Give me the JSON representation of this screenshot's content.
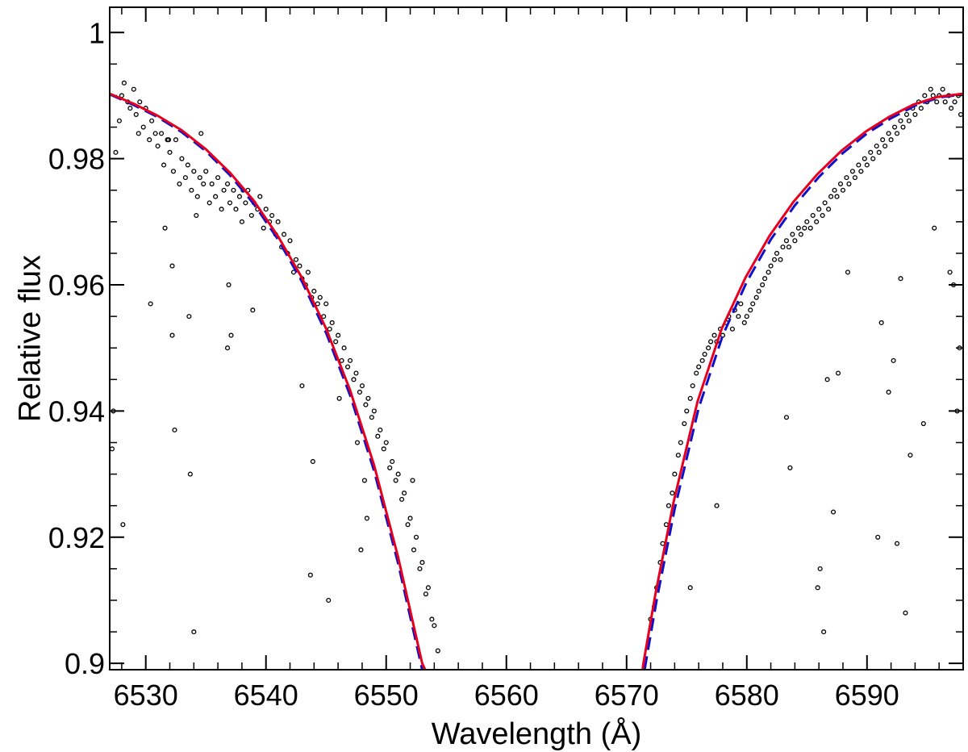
{
  "chart_data": {
    "type": "scatter",
    "title": "",
    "xlabel": "Wavelength (Å)",
    "ylabel": "Relative flux",
    "xlim": [
      6527,
      6598
    ],
    "ylim": [
      0.899,
      1.004
    ],
    "x_ticks": [
      6530,
      6540,
      6550,
      6560,
      6570,
      6580,
      6590
    ],
    "x_tick_labels": [
      "6530",
      "6540",
      "6550",
      "6560",
      "6570",
      "6580",
      "6590"
    ],
    "x_minor_step": 2,
    "y_ticks": [
      0.9,
      0.92,
      0.94,
      0.96,
      0.98,
      1.0
    ],
    "y_tick_labels": [
      "0.9",
      "0.92",
      "0.94",
      "0.96",
      "0.98",
      "1"
    ],
    "y_minor_step": 0.005,
    "grid": false,
    "legend": "none",
    "series": [
      {
        "kind": "scatter",
        "marker": "open-circle",
        "color": "#000000",
        "x": [
          6527.2,
          6527.5,
          6527.8,
          6528.0,
          6528.2,
          6528.5,
          6528.7,
          6529.0,
          6529.2,
          6529.5,
          6529.8,
          6530.0,
          6530.3,
          6530.5,
          6530.8,
          6531.0,
          6531.3,
          6531.5,
          6531.8,
          6532.0,
          6532.3,
          6532.5,
          6532.8,
          6533.0,
          6533.3,
          6533.5,
          6533.8,
          6534.0,
          6534.3,
          6534.5,
          6534.8,
          6535.0,
          6535.3,
          6535.5,
          6535.8,
          6536.0,
          6536.3,
          6536.5,
          6536.8,
          6537.0,
          6537.3,
          6537.5,
          6537.8,
          6538.0,
          6538.3,
          6538.5,
          6538.8,
          6539.0,
          6539.3,
          6539.5,
          6539.8,
          6540.0,
          6540.3,
          6540.5,
          6540.8,
          6541.0,
          6541.3,
          6541.5,
          6541.8,
          6542.0,
          6542.3,
          6542.5,
          6542.8,
          6543.0,
          6543.3,
          6543.5,
          6543.8,
          6544.0,
          6544.3,
          6544.5,
          6544.8,
          6545.0,
          6545.3,
          6545.5,
          6545.8,
          6546.0,
          6546.3,
          6546.5,
          6546.8,
          6547.0,
          6547.3,
          6547.5,
          6547.8,
          6548.0,
          6548.3,
          6548.5,
          6548.8,
          6549.0,
          6549.3,
          6549.5,
          6549.8,
          6550.0,
          6550.3,
          6550.5,
          6550.8,
          6551.0,
          6551.3,
          6551.5,
          6551.8,
          6552.0,
          6552.3,
          6552.5,
          6552.8,
          6553.0,
          6553.3,
          6553.5,
          6553.8,
          6554.0,
          6554.3,
          6527.3,
          6528.1,
          6530.4,
          6531.6,
          6532.2,
          6532.4,
          6533.6,
          6534.2,
          6536.9,
          6537.1,
          6538.9,
          6543.0,
          6543.9,
          6546.1,
          6547.6,
          6548.2,
          6552.2,
          6532.2,
          6533.7,
          6534.0,
          6536.8,
          6543.7,
          6547.9,
          6548.4,
          6545.2,
          6529.4,
          6531.9,
          6534.6,
          6538.1,
          6572.0,
          6572.3,
          6572.5,
          6572.8,
          6573.0,
          6573.3,
          6573.5,
          6573.8,
          6574.0,
          6574.3,
          6574.5,
          6574.8,
          6575.0,
          6575.3,
          6575.5,
          6575.8,
          6576.0,
          6576.3,
          6576.5,
          6576.8,
          6577.0,
          6577.3,
          6577.5,
          6577.8,
          6578.0,
          6578.3,
          6578.5,
          6578.8,
          6579.0,
          6579.3,
          6579.5,
          6579.8,
          6580.0,
          6580.3,
          6580.5,
          6580.8,
          6581.0,
          6581.3,
          6581.5,
          6581.8,
          6582.0,
          6582.3,
          6582.5,
          6582.8,
          6583.0,
          6583.3,
          6583.5,
          6583.8,
          6584.0,
          6584.3,
          6584.5,
          6584.8,
          6585.0,
          6585.3,
          6585.5,
          6585.8,
          6586.0,
          6586.3,
          6586.5,
          6586.8,
          6587.0,
          6587.3,
          6587.5,
          6587.8,
          6588.0,
          6588.3,
          6588.5,
          6588.8,
          6589.0,
          6589.3,
          6589.5,
          6589.8,
          6590.0,
          6590.3,
          6590.5,
          6590.8,
          6591.0,
          6591.3,
          6591.5,
          6591.8,
          6592.0,
          6592.3,
          6592.5,
          6592.8,
          6593.0,
          6593.3,
          6593.5,
          6593.8,
          6594.0,
          6594.3,
          6594.5,
          6594.8,
          6595.0,
          6595.3,
          6595.5,
          6595.8,
          6596.0,
          6596.3,
          6596.5,
          6596.8,
          6597.0,
          6597.3,
          6597.6,
          6597.8,
          6575.3,
          6577.5,
          6583.3,
          6583.6,
          6585.9,
          6586.4,
          6586.7,
          6587.2,
          6587.6,
          6588.4,
          6591.2,
          6591.8,
          6592.2,
          6592.5,
          6592.8,
          6593.6,
          6593.2,
          6597.5,
          6597.7,
          6596.9,
          6597.2,
          6586.1,
          6590.9,
          6594.7,
          6595.6
        ],
        "y": [
          0.934,
          0.981,
          0.986,
          0.99,
          0.992,
          0.989,
          0.988,
          0.991,
          0.987,
          0.989,
          0.985,
          0.988,
          0.983,
          0.986,
          0.984,
          0.982,
          0.984,
          0.979,
          0.983,
          0.981,
          0.978,
          0.983,
          0.976,
          0.98,
          0.977,
          0.979,
          0.975,
          0.978,
          0.974,
          0.977,
          0.976,
          0.978,
          0.973,
          0.976,
          0.974,
          0.977,
          0.972,
          0.975,
          0.976,
          0.973,
          0.975,
          0.972,
          0.974,
          0.97,
          0.973,
          0.975,
          0.971,
          0.973,
          0.972,
          0.974,
          0.969,
          0.972,
          0.97,
          0.971,
          0.968,
          0.97,
          0.966,
          0.968,
          0.965,
          0.967,
          0.962,
          0.964,
          0.963,
          0.961,
          0.96,
          0.962,
          0.958,
          0.959,
          0.957,
          0.958,
          0.955,
          0.957,
          0.953,
          0.954,
          0.951,
          0.952,
          0.948,
          0.95,
          0.947,
          0.948,
          0.945,
          0.946,
          0.943,
          0.944,
          0.941,
          0.942,
          0.939,
          0.94,
          0.936,
          0.937,
          0.934,
          0.935,
          0.931,
          0.932,
          0.929,
          0.93,
          0.926,
          0.927,
          0.922,
          0.923,
          0.918,
          0.92,
          0.915,
          0.916,
          0.911,
          0.912,
          0.907,
          0.906,
          0.902,
          0.94,
          0.922,
          0.957,
          0.969,
          0.963,
          0.937,
          0.955,
          0.971,
          0.96,
          0.952,
          0.956,
          0.944,
          0.932,
          0.942,
          0.935,
          0.929,
          0.929,
          0.952,
          0.93,
          0.905,
          0.95,
          0.914,
          0.918,
          0.923,
          0.91,
          0.984,
          0.983,
          0.984,
          0.975,
          0.907,
          0.909,
          0.912,
          0.916,
          0.919,
          0.922,
          0.925,
          0.927,
          0.93,
          0.933,
          0.935,
          0.938,
          0.94,
          0.942,
          0.944,
          0.946,
          0.947,
          0.948,
          0.949,
          0.95,
          0.951,
          0.952,
          0.951,
          0.953,
          0.952,
          0.954,
          0.955,
          0.953,
          0.956,
          0.955,
          0.957,
          0.954,
          0.955,
          0.956,
          0.957,
          0.958,
          0.959,
          0.96,
          0.961,
          0.962,
          0.963,
          0.964,
          0.965,
          0.964,
          0.966,
          0.967,
          0.966,
          0.968,
          0.967,
          0.969,
          0.968,
          0.969,
          0.97,
          0.969,
          0.971,
          0.97,
          0.972,
          0.971,
          0.973,
          0.972,
          0.974,
          0.975,
          0.974,
          0.976,
          0.975,
          0.977,
          0.976,
          0.978,
          0.977,
          0.979,
          0.978,
          0.98,
          0.979,
          0.981,
          0.98,
          0.982,
          0.981,
          0.983,
          0.982,
          0.984,
          0.983,
          0.985,
          0.984,
          0.986,
          0.985,
          0.987,
          0.986,
          0.988,
          0.987,
          0.989,
          0.988,
          0.99,
          0.989,
          0.991,
          0.99,
          0.989,
          0.99,
          0.991,
          0.989,
          0.99,
          0.988,
          0.989,
          0.99,
          0.987,
          0.912,
          0.925,
          0.939,
          0.931,
          0.912,
          0.905,
          0.945,
          0.924,
          0.946,
          0.962,
          0.954,
          0.943,
          0.948,
          0.919,
          0.961,
          0.933,
          0.908,
          0.94,
          0.95,
          0.962,
          0.96,
          0.915,
          0.92,
          0.938,
          0.969
        ]
      },
      {
        "kind": "line",
        "style": "dashed",
        "color": "#1010c8",
        "x_left": [
          6527,
          6529,
          6531,
          6533,
          6535,
          6537,
          6539,
          6541,
          6543,
          6545,
          6547,
          6549,
          6551,
          6553,
          6554,
          6554.8
        ],
        "y_left": [
          0.9902,
          0.9885,
          0.9866,
          0.9842,
          0.9812,
          0.9774,
          0.9728,
          0.9672,
          0.9605,
          0.9524,
          0.9425,
          0.9305,
          0.9158,
          0.899,
          0.895,
          0.89
        ],
        "x_right": [
          6570.8,
          6571.5,
          6572.5,
          6574,
          6576,
          6578,
          6580,
          6582,
          6584,
          6586,
          6588,
          6590,
          6592,
          6594,
          6596,
          6598
        ],
        "y_right": [
          0.89,
          0.899,
          0.91,
          0.9245,
          0.9405,
          0.952,
          0.9605,
          0.9672,
          0.9726,
          0.9771,
          0.9809,
          0.984,
          0.9864,
          0.9884,
          0.9897,
          0.9902
        ]
      },
      {
        "kind": "line",
        "style": "solid",
        "color": "#e6001e",
        "x_left": [
          6527,
          6529,
          6531,
          6533,
          6535,
          6537,
          6539,
          6541,
          6543,
          6545,
          6547,
          6549,
          6551,
          6553,
          6554,
          6554.9
        ],
        "y_left": [
          0.9903,
          0.9887,
          0.9868,
          0.9845,
          0.9815,
          0.9778,
          0.9733,
          0.9677,
          0.9611,
          0.9531,
          0.9433,
          0.9314,
          0.9168,
          0.9,
          0.896,
          0.89
        ],
        "x_right": [
          6570.7,
          6571.4,
          6572.4,
          6573.9,
          6575.9,
          6577.9,
          6579.9,
          6581.9,
          6583.9,
          6585.9,
          6587.9,
          6589.9,
          6591.9,
          6593.9,
          6595.9,
          6598
        ],
        "y_right": [
          0.89,
          0.9,
          0.911,
          0.9255,
          0.9415,
          0.953,
          0.9612,
          0.9678,
          0.9732,
          0.9776,
          0.9813,
          0.9843,
          0.9867,
          0.9886,
          0.9898,
          0.9903
        ]
      }
    ]
  }
}
